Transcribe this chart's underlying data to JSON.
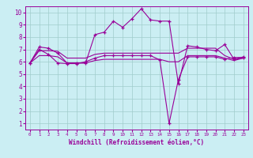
{
  "xlabel": "Windchill (Refroidissement éolien,°C)",
  "background_color": "#cbeef3",
  "grid_color": "#a0cccc",
  "line_color": "#990099",
  "xlim": [
    -0.5,
    23.5
  ],
  "ylim": [
    0.5,
    10.5
  ],
  "xticks": [
    0,
    1,
    2,
    3,
    4,
    5,
    6,
    7,
    8,
    9,
    10,
    11,
    12,
    13,
    14,
    15,
    16,
    17,
    18,
    19,
    20,
    21,
    22,
    23
  ],
  "yticks": [
    1,
    2,
    3,
    4,
    5,
    6,
    7,
    8,
    9,
    10
  ],
  "line1_x": [
    0,
    1,
    2,
    3,
    4,
    5,
    6,
    7,
    8,
    9,
    10,
    11,
    12,
    13,
    14,
    15,
    16,
    17,
    18,
    19,
    20,
    21,
    22,
    23
  ],
  "line1_y": [
    5.9,
    7.2,
    7.1,
    6.7,
    5.9,
    5.9,
    5.9,
    8.2,
    8.4,
    9.3,
    8.8,
    9.5,
    10.3,
    9.4,
    9.3,
    9.3,
    4.2,
    7.3,
    7.2,
    7.0,
    6.9,
    7.4,
    6.2,
    6.4
  ],
  "line2_x": [
    0,
    1,
    2,
    3,
    4,
    5,
    6,
    7,
    8,
    9,
    10,
    11,
    12,
    13,
    14,
    15,
    16,
    17,
    18,
    19,
    20,
    21,
    22,
    23
  ],
  "line2_y": [
    5.9,
    6.9,
    6.9,
    6.85,
    6.3,
    6.3,
    6.3,
    6.6,
    6.7,
    6.7,
    6.7,
    6.7,
    6.7,
    6.7,
    6.7,
    6.7,
    6.7,
    7.1,
    7.1,
    7.1,
    7.1,
    6.5,
    6.2,
    6.3
  ],
  "line3_x": [
    0,
    1,
    2,
    3,
    4,
    5,
    6,
    7,
    8,
    9,
    10,
    11,
    12,
    13,
    14,
    15,
    16,
    17,
    18,
    19,
    20,
    21,
    22,
    23
  ],
  "line3_y": [
    5.9,
    7.0,
    6.6,
    5.9,
    5.85,
    5.85,
    6.0,
    6.3,
    6.5,
    6.5,
    6.5,
    6.5,
    6.5,
    6.5,
    6.15,
    1.0,
    4.55,
    6.4,
    6.4,
    6.4,
    6.4,
    6.2,
    6.35,
    6.35
  ],
  "line4_x": [
    0,
    1,
    2,
    3,
    4,
    5,
    6,
    7,
    8,
    9,
    10,
    11,
    12,
    13,
    14,
    15,
    16,
    17,
    18,
    19,
    20,
    21,
    22,
    23
  ],
  "line4_y": [
    5.9,
    6.5,
    6.5,
    6.4,
    5.9,
    5.9,
    5.9,
    6.1,
    6.2,
    6.2,
    6.2,
    6.2,
    6.2,
    6.2,
    6.2,
    6.0,
    6.0,
    6.5,
    6.5,
    6.5,
    6.5,
    6.3,
    6.1,
    6.3
  ],
  "line1_markers": true,
  "line3_markers": true,
  "figsize": [
    3.2,
    2.0
  ],
  "dpi": 100
}
